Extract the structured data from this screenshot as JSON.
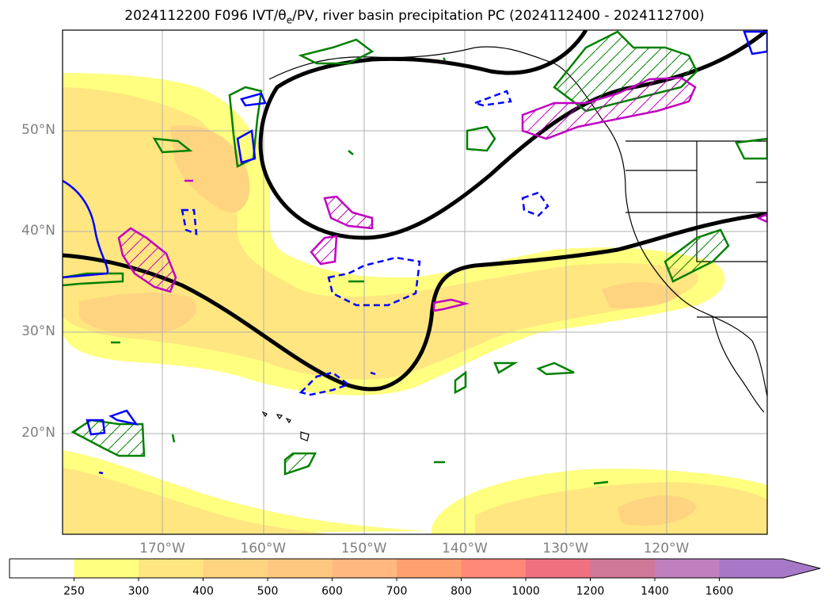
{
  "title": {
    "prefix": "2024112200 F096 IVT/θ",
    "sub": "e",
    "suffix": "/PV, river basin precipitation PC (2024112400 - 2024112700)"
  },
  "map": {
    "lat_labels": [
      {
        "label": "50°N",
        "lat": 50
      },
      {
        "label": "40°N",
        "lat": 40
      },
      {
        "label": "30°N",
        "lat": 30
      },
      {
        "label": "20°N",
        "lat": 20
      }
    ],
    "lon_labels": [
      {
        "label": "170°W",
        "lon": -170
      },
      {
        "label": "160°W",
        "lon": -160
      },
      {
        "label": "150°W",
        "lon": -150
      },
      {
        "label": "140°W",
        "lon": -140
      },
      {
        "label": "130°W",
        "lon": -130
      },
      {
        "label": "120°W",
        "lon": -120
      }
    ],
    "colors": {
      "ivt_250": "#ffff80",
      "ivt_300": "#ffe680",
      "ivt_400": "#ffd480",
      "contour_black": "#000000",
      "contour_green": "#008000",
      "contour_blue": "#0000ff",
      "contour_magenta": "#c000c0",
      "grid": "#b0b0b0"
    }
  },
  "colorbar": {
    "ticks": [
      "250",
      "300",
      "400",
      "500",
      "600",
      "700",
      "800",
      "1000",
      "1200",
      "1400",
      "1600"
    ],
    "colors": [
      "#ffffff",
      "#ffff80",
      "#ffe680",
      "#ffd480",
      "#ffc880",
      "#ffb880",
      "#ffa070",
      "#ff8878",
      "#f07080",
      "#d07898",
      "#c080c0",
      "#a878c8"
    ]
  }
}
